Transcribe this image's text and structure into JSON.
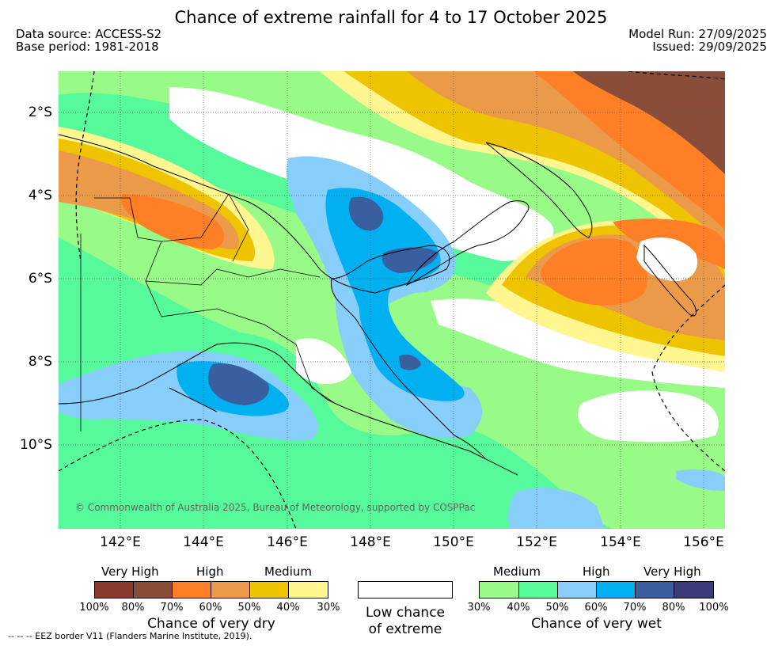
{
  "header": {
    "title": "Chance of extreme rainfall for 4 to 17 October 2025",
    "data_source": "Data source: ACCESS-S2",
    "base_period": "Base period: 1981-2018",
    "model_run": "Model Run: 27/09/2025",
    "issued": "Issued: 29/09/2025"
  },
  "map": {
    "y_ticks": [
      "2°S",
      "4°S",
      "6°S",
      "8°S",
      "10°S"
    ],
    "x_ticks": [
      "142°E",
      "144°E",
      "146°E",
      "148°E",
      "150°E",
      "152°E",
      "154°E",
      "156°E"
    ],
    "copyright": "© Commonwealth of Australia 2025, Bureau of Meteorology, supported by COSPPac",
    "colors": {
      "dry_vh1": "#8B3A2F",
      "dry_vh2": "#8A4D3A",
      "dry_h1": "#FF7F27",
      "dry_h2": "#EB9A4A",
      "dry_m1": "#EEC400",
      "dry_m2": "#FFF68F",
      "low": "#FFFFFF",
      "wet_m1": "#98FB88",
      "wet_m2": "#57FA9A",
      "wet_h1": "#87CEFA",
      "wet_h2": "#00B0F0",
      "wet_vh1": "#3A5FA0",
      "wet_vh2": "#3A3C7A"
    }
  },
  "legend": {
    "dry": {
      "levels": [
        "Very High",
        "High",
        "Medium"
      ],
      "percents": [
        "100%",
        "80%",
        "70%",
        "60%",
        "50%",
        "40%",
        "30%"
      ],
      "caption": "Chance of very dry"
    },
    "low": {
      "caption_line1": "Low chance",
      "caption_line2": "of extreme"
    },
    "wet": {
      "levels": [
        "Medium",
        "High",
        "Very High"
      ],
      "percents": [
        "30%",
        "40%",
        "50%",
        "60%",
        "70%",
        "80%",
        "100%"
      ],
      "caption": "Chance of very wet"
    }
  },
  "footnote": "--  --  -- EEZ border V11 (Flanders Marine Institute, 2019)."
}
